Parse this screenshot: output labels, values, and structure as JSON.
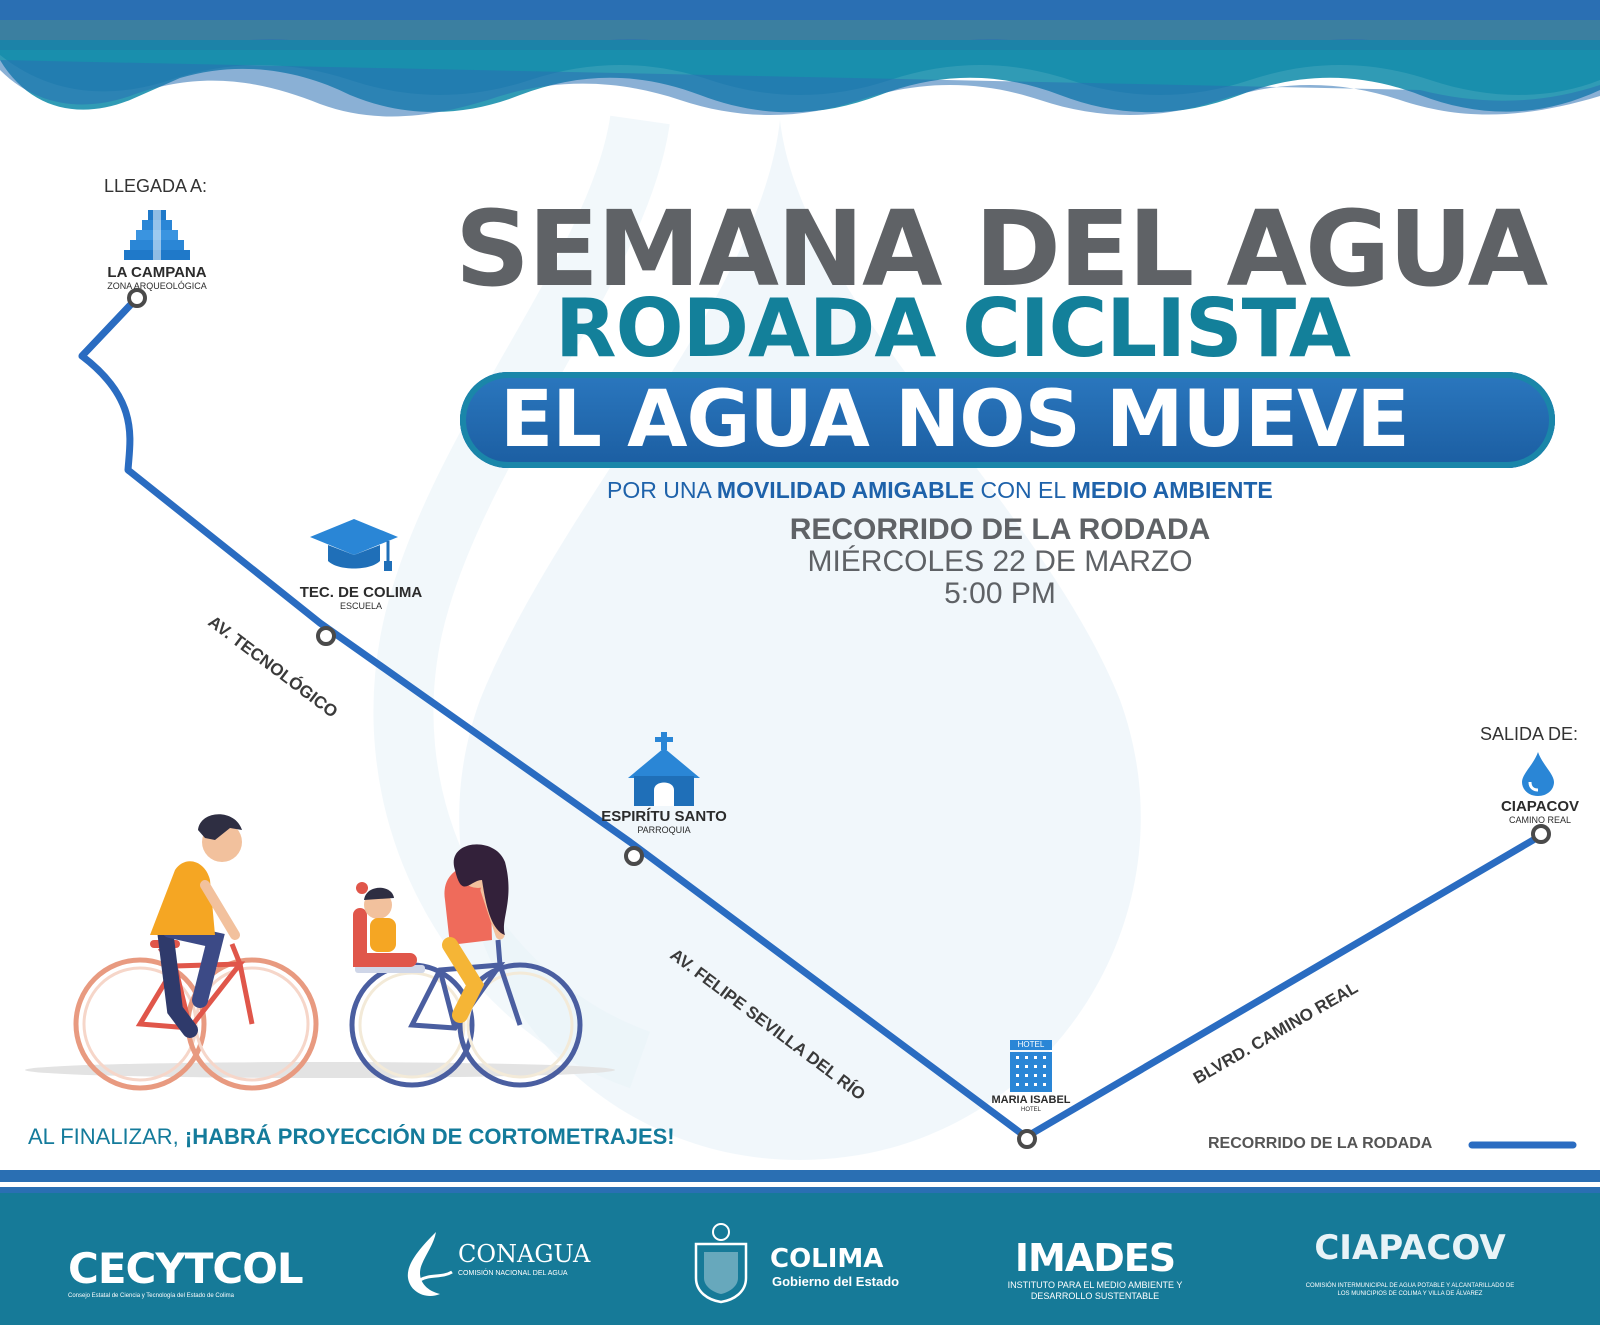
{
  "header": {
    "title": "SEMANA DEL AGUA",
    "subtitle": "RODADA CICLISTA",
    "slogan": "EL AGUA NOS MUEVE"
  },
  "tagline": {
    "p1": "POR UNA ",
    "b1": "MOVILIDAD AMIGABLE",
    "p2": " CON EL ",
    "b2": "MEDIO AMBIENTE"
  },
  "event": {
    "label": "RECORRIDO DE LA RODADA",
    "date": "MIÉRCOLES 22 DE MARZO",
    "time": "5:00 PM"
  },
  "route": {
    "arrival_label": "LLEGADA A:",
    "departure_label": "SALIDA DE:",
    "stops": [
      {
        "name": "LA CAMPANA",
        "type": "ZONA ARQUEOLÓGICA",
        "icon": "pyramid-icon"
      },
      {
        "name": "TEC. DE COLIMA",
        "type": "ESCUELA",
        "icon": "graduation-cap-icon"
      },
      {
        "name": "ESPIRÍTU SANTO",
        "type": "PARROQUIA",
        "icon": "church-icon"
      },
      {
        "name": "MARIA ISABEL",
        "type": "HOTEL",
        "icon": "hotel-icon",
        "icon_text": "HOTEL"
      },
      {
        "name": "CIAPACOV",
        "type": "CAMINO REAL",
        "icon": "water-drop-icon"
      }
    ],
    "streets": [
      "AV. TECNOLÓGICO",
      "AV. FELIPE SEVILLA DEL RÍO",
      "BLVRD. CAMINO REAL"
    ],
    "legend": "RECORRIDO DE LA RODADA"
  },
  "closing": {
    "p1": "AL FINALIZAR, ",
    "b1": "¡HABRÁ PROYECCIÓN DE CORTOMETRAJES!"
  },
  "footer": {
    "logos": [
      {
        "name": "CECYTCOL",
        "sub": "Consejo Estatal de Ciencia y Tecnología del Estado de Colima"
      },
      {
        "name": "CONAGUA",
        "sub": "COMISIÓN NACIONAL DEL AGUA"
      },
      {
        "name": "COLIMA",
        "sub": "Gobierno del Estado"
      },
      {
        "name": "IMADES",
        "sub": "INSTITUTO PARA EL MEDIO AMBIENTE Y DESARROLLO SUSTENTABLE"
      },
      {
        "name": "CIAPACOV",
        "sub": "COMISIÓN INTERMUNICIPAL DE AGUA POTABLE Y ALCANTARILLADO DE LOS MUNICIPIOS DE COLIMA Y VILLA DE ÁLVAREZ"
      }
    ]
  },
  "colors": {
    "route": "#2a6cc1",
    "title_gray": "#5f6266",
    "teal": "#13809a",
    "blue": "#1e62aa",
    "footer_bg": "#167a98"
  }
}
